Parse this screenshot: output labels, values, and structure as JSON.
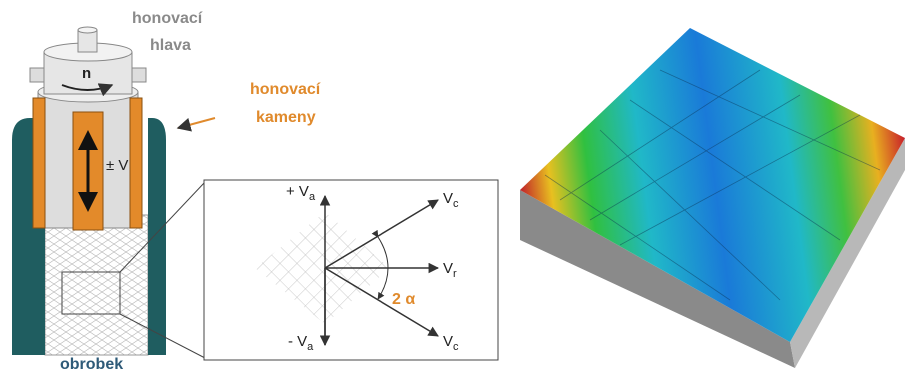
{
  "head_label": [
    "honovací",
    "hlava"
  ],
  "stones_label": [
    "honovací",
    "kameny"
  ],
  "workpiece_label": "obrobek",
  "rotation_label": "n",
  "stroke_label": "± V",
  "axial_plus": {
    "text": "+ V",
    "sub": "a"
  },
  "axial_minus": {
    "text": "- V",
    "sub": "a"
  },
  "cut_upper": {
    "text": "V",
    "sub": "c"
  },
  "cut_lower": {
    "text": "V",
    "sub": "c"
  },
  "radial": {
    "text": "V",
    "sub": "r"
  },
  "angle_label": "2 α"
}
